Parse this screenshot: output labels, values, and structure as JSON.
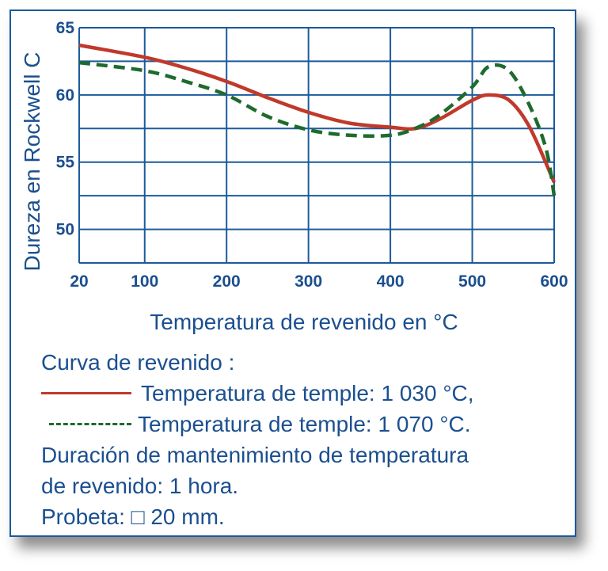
{
  "chart_data": {
    "type": "line",
    "ylabel": "Dureza en Rockwell C",
    "xlabel": "Temperatura de revenido en °C",
    "xlim": [
      20,
      600
    ],
    "ylim": [
      47.5,
      65
    ],
    "x_ticks": [
      20,
      100,
      200,
      300,
      400,
      500,
      600
    ],
    "y_ticks": [
      50,
      55,
      60,
      65
    ],
    "grid": true,
    "series": [
      {
        "name": "Temperatura de temple: 1 030 °C,",
        "color": "#c0392b",
        "style": "solid",
        "points": [
          [
            20,
            63.7
          ],
          [
            100,
            62.8
          ],
          [
            150,
            62.0
          ],
          [
            200,
            61.0
          ],
          [
            250,
            59.8
          ],
          [
            300,
            58.7
          ],
          [
            350,
            57.9
          ],
          [
            400,
            57.6
          ],
          [
            430,
            57.5
          ],
          [
            460,
            58.2
          ],
          [
            500,
            59.6
          ],
          [
            520,
            60.0
          ],
          [
            545,
            59.6
          ],
          [
            570,
            57.6
          ],
          [
            600,
            53.5
          ]
        ]
      },
      {
        "name": "Temperatura de temple: 1 070 °C.",
        "color": "#1e6b2d",
        "style": "dashed",
        "points": [
          [
            20,
            62.4
          ],
          [
            100,
            61.8
          ],
          [
            150,
            61.0
          ],
          [
            200,
            60.0
          ],
          [
            250,
            58.4
          ],
          [
            300,
            57.4
          ],
          [
            350,
            57.0
          ],
          [
            400,
            57.0
          ],
          [
            430,
            57.5
          ],
          [
            460,
            58.5
          ],
          [
            500,
            60.6
          ],
          [
            520,
            62.1
          ],
          [
            545,
            61.8
          ],
          [
            570,
            59.2
          ],
          [
            590,
            56.0
          ],
          [
            600,
            52.5
          ]
        ]
      }
    ]
  },
  "legend": {
    "title": "Curva de revenido :",
    "line1": "Temperatura de temple: 1 030 °C,",
    "line2": "Temperatura de temple: 1 070 °C.",
    "duration_line1": "Duración de mantenimiento de temperatura",
    "duration_line2": "de revenido: 1 hora.",
    "specimen": "Probeta: □ 20 mm."
  },
  "colors": {
    "axis": "#1b5a9c",
    "text": "#1b4f8f",
    "background": "#ffffff"
  }
}
